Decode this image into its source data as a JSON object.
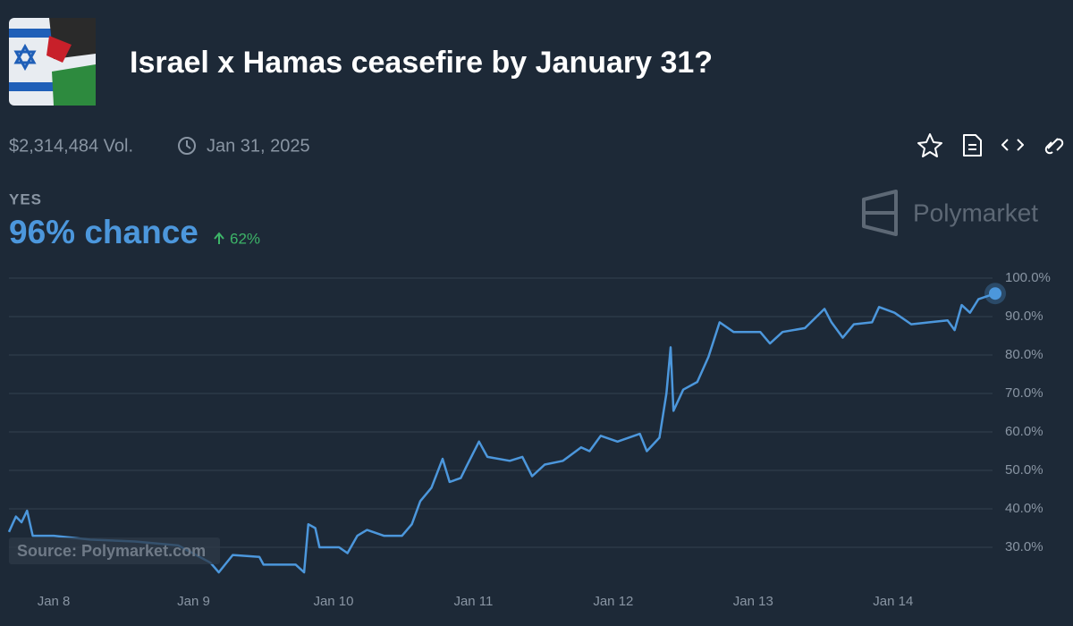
{
  "header": {
    "title": "Israel x Hamas ceasefire by January 31?",
    "volume": "$2,314,484 Vol.",
    "end_date": "Jan 31, 2025",
    "outcome": "YES",
    "chance": "96% chance",
    "change": "62%",
    "brand": "Polymarket",
    "source": "Source: Polymarket.com"
  },
  "chart_data": {
    "type": "line",
    "x": [
      7.68,
      7.73,
      7.77,
      7.81,
      7.85,
      8.0,
      8.26,
      8.58,
      8.89,
      9.12,
      9.18,
      9.28,
      9.47,
      9.5,
      9.73,
      9.79,
      9.82,
      9.87,
      9.9,
      10.04,
      10.1,
      10.17,
      10.24,
      10.36,
      10.49,
      10.56,
      10.62,
      10.7,
      10.78,
      10.83,
      10.91,
      10.95,
      11.04,
      11.1,
      11.26,
      11.35,
      11.42,
      11.51,
      11.64,
      11.77,
      11.83,
      11.91,
      12.03,
      12.19,
      12.24,
      12.33,
      12.38,
      12.41,
      12.43,
      12.5,
      12.6,
      12.68,
      12.76,
      12.86,
      13.05,
      13.12,
      13.21,
      13.37,
      13.51,
      13.56,
      13.64,
      13.72,
      13.85,
      13.9,
      14.01,
      14.13,
      14.26,
      14.39,
      14.44,
      14.49,
      14.55,
      14.61,
      14.73
    ],
    "series": [
      {
        "name": "YES",
        "color": "#4c97dc",
        "values": [
          34,
          38,
          36.5,
          39.5,
          33,
          33,
          32,
          31.5,
          30.5,
          26,
          23.5,
          28,
          27.5,
          25.5,
          25.5,
          23.5,
          36,
          35,
          30,
          30,
          28.5,
          33,
          34.5,
          33,
          33,
          36,
          42,
          45.5,
          53,
          47,
          48,
          51,
          57.5,
          53.5,
          52.5,
          53.5,
          48.5,
          51.5,
          52.5,
          56,
          55,
          59,
          57.5,
          59.5,
          55,
          58.5,
          70,
          82,
          65.5,
          71,
          73,
          79.5,
          88.5,
          86,
          86,
          83,
          86,
          87,
          92,
          88.5,
          84.5,
          88,
          88.5,
          92.5,
          91,
          88,
          88.5,
          89,
          86.5,
          93,
          91,
          94.5,
          96
        ]
      }
    ],
    "xlim": [
      7.68,
      14.73
    ],
    "xticks": [
      {
        "value": 8,
        "label": "Jan 8"
      },
      {
        "value": 9,
        "label": "Jan 9"
      },
      {
        "value": 10,
        "label": "Jan 10"
      },
      {
        "value": 11,
        "label": "Jan 11"
      },
      {
        "value": 12,
        "label": "Jan 12"
      },
      {
        "value": 13,
        "label": "Jan 13"
      },
      {
        "value": 14,
        "label": "Jan 14"
      }
    ],
    "ylim": [
      20,
      100
    ],
    "yticks": [
      {
        "value": 30,
        "label": "30.0%"
      },
      {
        "value": 40,
        "label": "40.0%"
      },
      {
        "value": 50,
        "label": "50.0%"
      },
      {
        "value": 60,
        "label": "60.0%"
      },
      {
        "value": 70,
        "label": "70.0%"
      },
      {
        "value": 80,
        "label": "80.0%"
      },
      {
        "value": 90,
        "label": "90.0%"
      },
      {
        "value": 100,
        "label": "100.0%"
      }
    ],
    "grid": true
  }
}
